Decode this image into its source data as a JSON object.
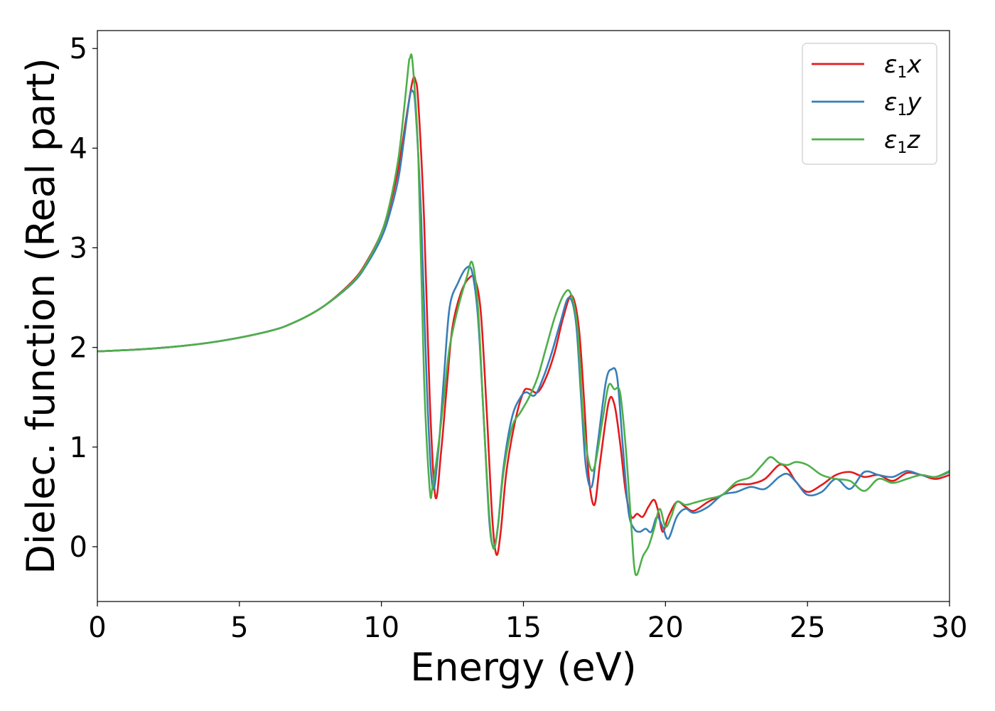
{
  "chart_data": {
    "type": "line",
    "title": "",
    "xlabel": "Energy (eV)",
    "ylabel": "Dielec. function (Real part)",
    "xlim": [
      0,
      30
    ],
    "ylim": [
      -0.55,
      5.18
    ],
    "xticks": [
      0,
      5,
      10,
      15,
      20,
      25,
      30
    ],
    "yticks": [
      0,
      1,
      2,
      3,
      4,
      5
    ],
    "grid": false,
    "legend_position": "top-right",
    "series": [
      {
        "name": "ε1x",
        "legend_main": "ε",
        "legend_sub": "1",
        "legend_tail": "x",
        "color": "#e41a1c",
        "x": [
          0,
          2,
          4,
          6,
          7,
          8,
          9,
          9.5,
          10,
          10.3,
          10.6,
          10.9,
          11.1,
          11.2,
          11.3,
          11.5,
          11.7,
          11.9,
          12.1,
          12.3,
          12.5,
          12.8,
          13.1,
          13.3,
          13.5,
          13.7,
          13.9,
          14.05,
          14.2,
          14.4,
          14.7,
          15.0,
          15.2,
          15.5,
          15.8,
          16.1,
          16.4,
          16.7,
          16.95,
          17.15,
          17.3,
          17.5,
          17.7,
          18.0,
          18.2,
          18.4,
          18.6,
          18.8,
          19.0,
          19.2,
          19.4,
          19.6,
          19.75,
          19.9,
          20.1,
          20.4,
          20.7,
          21.0,
          21.5,
          22.0,
          22.5,
          23.0,
          23.5,
          24.0,
          24.3,
          24.6,
          25.0,
          25.5,
          26.0,
          26.5,
          27.0,
          27.5,
          28.0,
          28.5,
          29.0,
          29.5,
          30.0
        ],
        "y": [
          1.96,
          1.99,
          2.05,
          2.16,
          2.26,
          2.42,
          2.67,
          2.87,
          3.15,
          3.42,
          3.8,
          4.35,
          4.68,
          4.68,
          4.45,
          3.3,
          1.5,
          0.5,
          0.95,
          1.6,
          2.2,
          2.55,
          2.7,
          2.68,
          2.35,
          1.4,
          0.3,
          -0.08,
          0.15,
          0.75,
          1.25,
          1.55,
          1.58,
          1.55,
          1.7,
          1.95,
          2.3,
          2.52,
          2.2,
          1.4,
          0.7,
          0.42,
          0.85,
          1.45,
          1.43,
          1.05,
          0.55,
          0.3,
          0.33,
          0.3,
          0.4,
          0.47,
          0.35,
          0.15,
          0.3,
          0.45,
          0.4,
          0.36,
          0.45,
          0.52,
          0.62,
          0.63,
          0.68,
          0.82,
          0.78,
          0.65,
          0.55,
          0.62,
          0.72,
          0.75,
          0.7,
          0.72,
          0.66,
          0.74,
          0.72,
          0.68,
          0.72
        ]
      },
      {
        "name": "ε1y",
        "legend_main": "ε",
        "legend_sub": "1",
        "legend_tail": "y",
        "color": "#377eb8",
        "x": [
          0,
          2,
          4,
          6,
          7,
          8,
          9,
          9.5,
          10,
          10.3,
          10.6,
          10.8,
          11.0,
          11.1,
          11.2,
          11.4,
          11.6,
          11.8,
          12.0,
          12.2,
          12.4,
          12.7,
          13.0,
          13.2,
          13.4,
          13.6,
          13.8,
          13.95,
          14.1,
          14.3,
          14.6,
          14.9,
          15.1,
          15.4,
          15.7,
          16.0,
          16.3,
          16.6,
          16.85,
          17.05,
          17.2,
          17.4,
          17.6,
          17.9,
          18.1,
          18.3,
          18.5,
          18.7,
          18.9,
          19.1,
          19.3,
          19.5,
          19.7,
          19.9,
          20.1,
          20.4,
          20.7,
          21.0,
          21.5,
          22.0,
          22.5,
          23.0,
          23.5,
          24.0,
          24.3,
          24.6,
          25.0,
          25.5,
          26.0,
          26.5,
          27.0,
          27.5,
          28.0,
          28.5,
          29.0,
          29.5,
          30.0
        ],
        "y": [
          1.96,
          1.99,
          2.05,
          2.16,
          2.26,
          2.42,
          2.65,
          2.84,
          3.1,
          3.35,
          3.7,
          4.1,
          4.52,
          4.57,
          4.4,
          3.3,
          1.6,
          0.6,
          0.95,
          1.7,
          2.4,
          2.65,
          2.8,
          2.75,
          2.3,
          1.3,
          0.25,
          0.0,
          0.2,
          0.8,
          1.3,
          1.5,
          1.55,
          1.52,
          1.7,
          1.95,
          2.25,
          2.5,
          2.25,
          1.4,
          0.8,
          0.6,
          1.0,
          1.65,
          1.78,
          1.7,
          1.0,
          0.35,
          0.18,
          0.15,
          0.18,
          0.15,
          0.3,
          0.2,
          0.08,
          0.3,
          0.38,
          0.34,
          0.4,
          0.52,
          0.55,
          0.6,
          0.58,
          0.7,
          0.73,
          0.65,
          0.52,
          0.55,
          0.68,
          0.58,
          0.75,
          0.72,
          0.7,
          0.76,
          0.72,
          0.7,
          0.75
        ]
      },
      {
        "name": "ε1z",
        "legend_main": "ε",
        "legend_sub": "1",
        "legend_tail": "z",
        "color": "#4daf4a",
        "x": [
          0,
          2,
          4,
          6,
          7,
          8,
          9,
          9.5,
          10,
          10.3,
          10.6,
          10.8,
          10.95,
          11.0,
          11.1,
          11.3,
          11.5,
          11.7,
          11.8,
          12.0,
          12.2,
          12.4,
          12.7,
          13.0,
          13.2,
          13.4,
          13.6,
          13.8,
          13.95,
          14.1,
          14.3,
          14.6,
          14.9,
          15.2,
          15.5,
          15.8,
          16.1,
          16.4,
          16.65,
          16.9,
          17.1,
          17.3,
          17.5,
          17.8,
          18.0,
          18.2,
          18.4,
          18.6,
          18.8,
          18.9,
          19.0,
          19.2,
          19.4,
          19.6,
          19.8,
          20.0,
          20.2,
          20.4,
          20.7,
          21.0,
          21.5,
          22.0,
          22.5,
          23.0,
          23.4,
          23.7,
          24.0,
          24.3,
          24.6,
          25.0,
          25.5,
          26.0,
          26.5,
          27.0,
          27.5,
          28.0,
          28.5,
          29.0,
          29.5,
          30.0
        ],
        "y": [
          1.96,
          1.99,
          2.05,
          2.16,
          2.26,
          2.42,
          2.66,
          2.86,
          3.15,
          3.45,
          3.9,
          4.4,
          4.82,
          4.9,
          4.85,
          3.9,
          1.7,
          0.58,
          0.6,
          1.0,
          1.5,
          2.0,
          2.4,
          2.7,
          2.85,
          2.4,
          1.3,
          0.3,
          -0.02,
          0.2,
          0.75,
          1.2,
          1.35,
          1.5,
          1.7,
          2.0,
          2.3,
          2.52,
          2.55,
          2.2,
          1.3,
          0.85,
          0.8,
          1.3,
          1.62,
          1.58,
          1.55,
          1.0,
          0.2,
          -0.2,
          -0.28,
          -0.1,
          0.0,
          0.18,
          0.38,
          0.2,
          0.3,
          0.45,
          0.42,
          0.44,
          0.48,
          0.52,
          0.65,
          0.7,
          0.82,
          0.9,
          0.84,
          0.82,
          0.85,
          0.82,
          0.72,
          0.68,
          0.66,
          0.56,
          0.68,
          0.64,
          0.68,
          0.72,
          0.7,
          0.76
        ]
      }
    ]
  }
}
